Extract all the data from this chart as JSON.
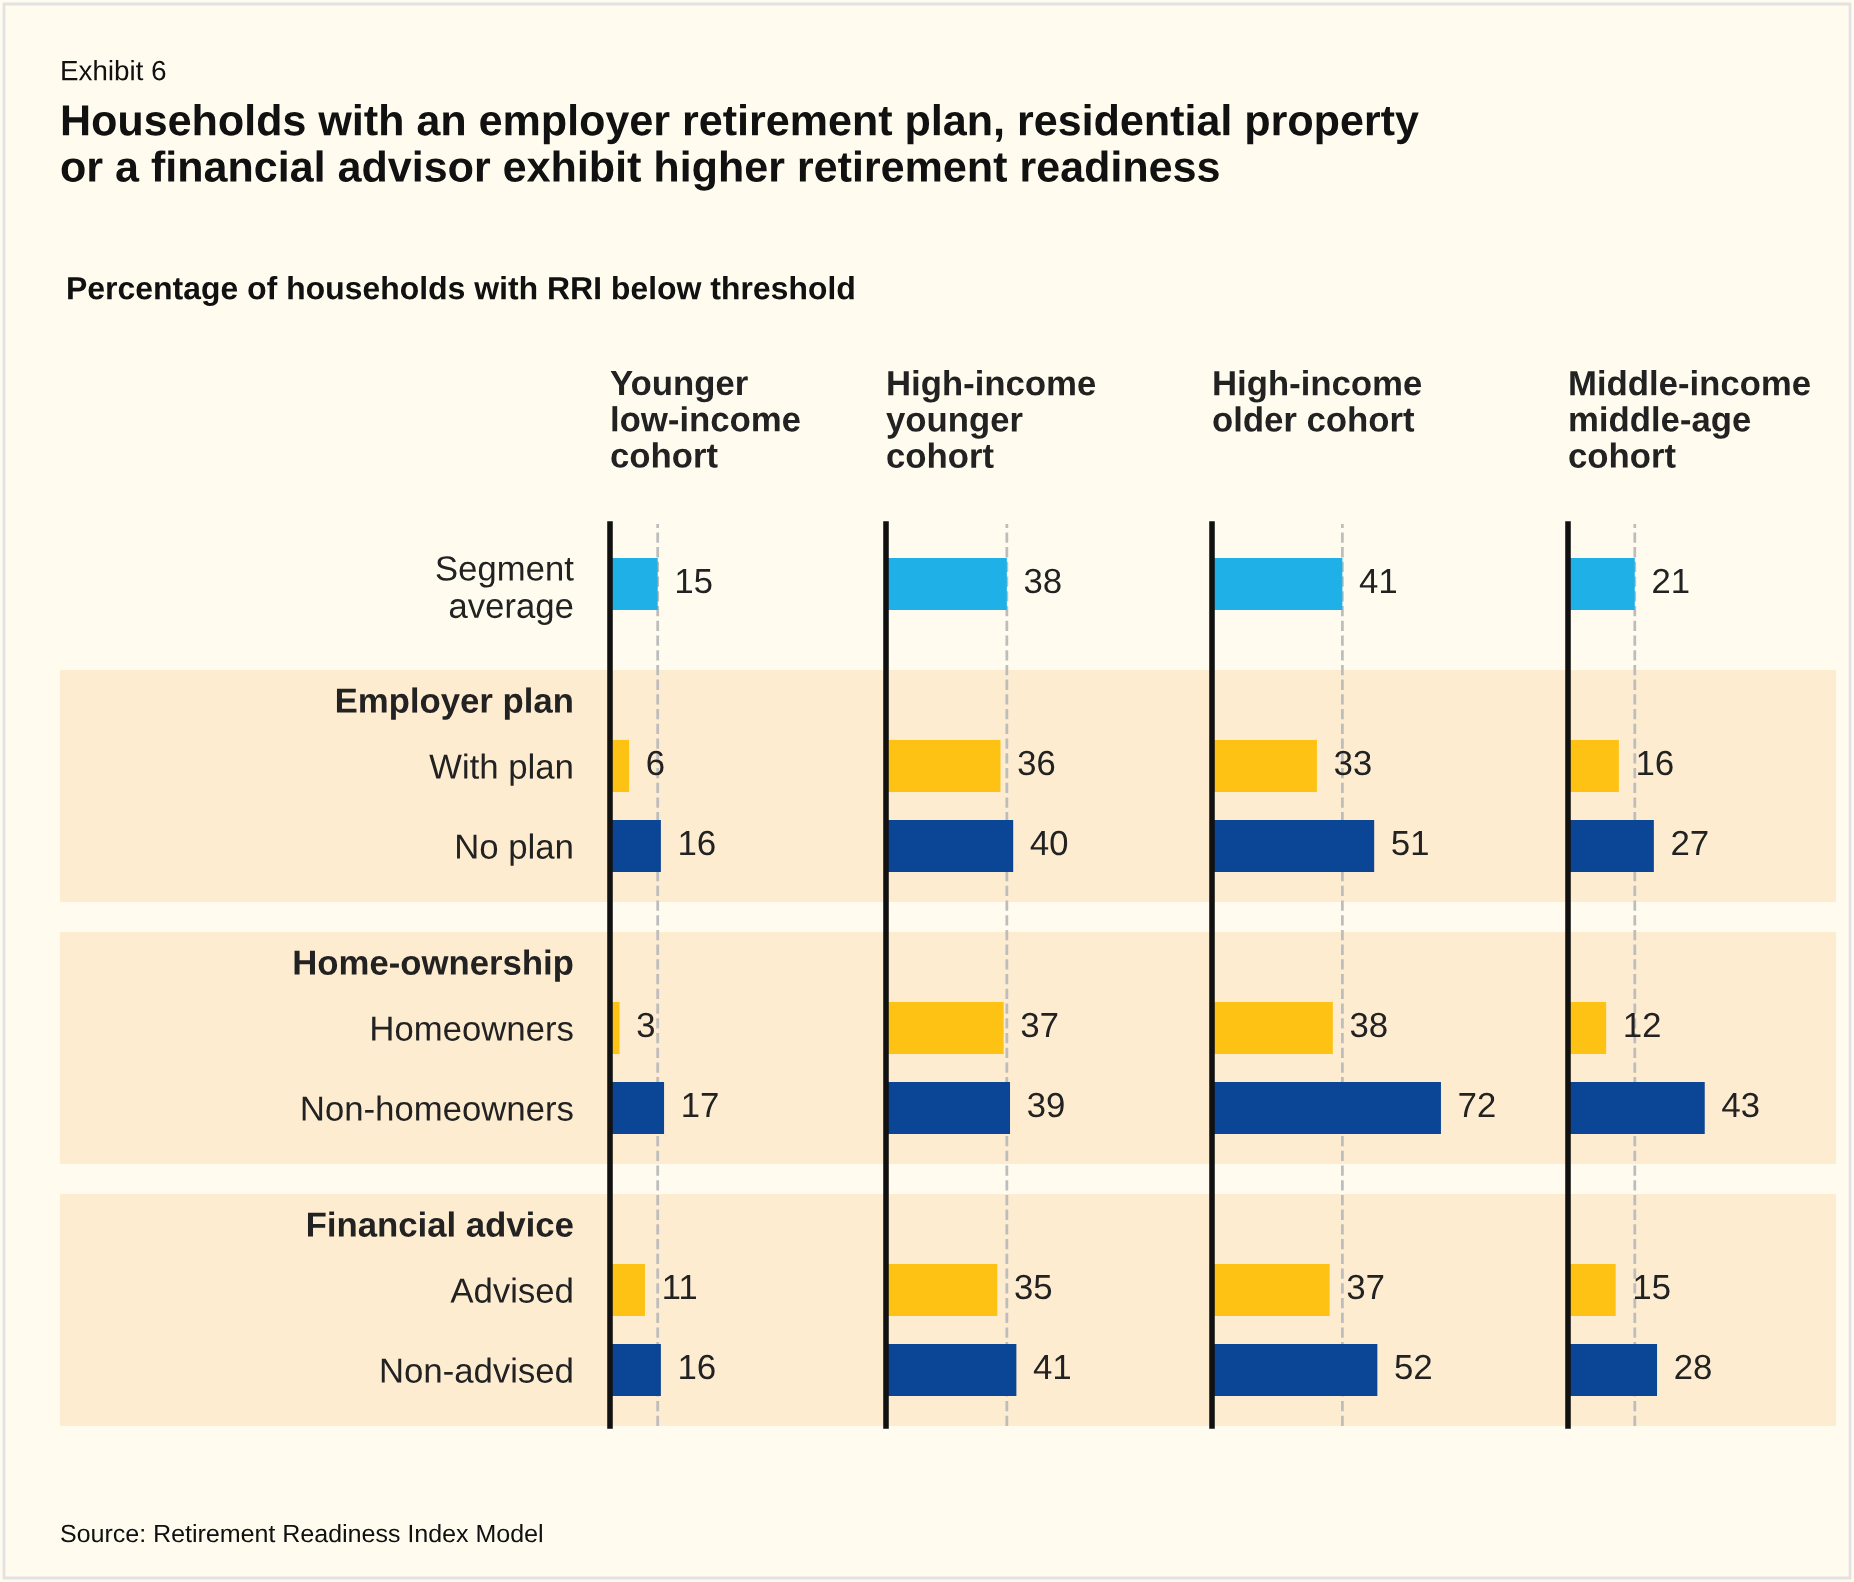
{
  "chart_data": [
    {
      "type": "bar",
      "orientation": "horizontal",
      "title": "Younger\nlow-income\ncohort",
      "categories": [
        "Segment\naverage",
        "Employer plan",
        "With plan",
        "No plan",
        "Home-ownership",
        "Homeowners",
        "Non-homeowners",
        "Financial advice",
        "Advised",
        "Non-advised"
      ],
      "values": [
        15,
        null,
        6,
        16,
        null,
        3,
        17,
        null,
        11,
        16
      ],
      "colors": [
        "#20b0e8",
        null,
        "#fec214",
        "#0b4596",
        null,
        "#fec214",
        "#0b4596",
        null,
        "#fec214",
        "#0b4596"
      ],
      "data_labels": true,
      "tick_labels": "y",
      "ref_lines": [
        {
          "axis": "x",
          "value": 15,
          "color": "#bdbdbd",
          "line_style": "dashed"
        }
      ],
      "bands": [
        {
          "axis": "y",
          "from": "Employer plan",
          "to": "No plan",
          "color": "#fdecd0"
        },
        {
          "axis": "y",
          "from": "Home-ownership",
          "to": "Non-homeowners",
          "color": "#fdecd0"
        },
        {
          "axis": "y",
          "from": "Financial advice",
          "to": "Non-advised",
          "color": "#fdecd0"
        }
      ],
      "annotations": [
        "Exhibit 6",
        "Households with an employer retirement plan, residential property\nor a financial advisor exhibit higher retirement readiness",
        "Percentage of households with RRI below threshold",
        "Source: Retirement Readiness Index Model"
      ]
    },
    {
      "type": "bar",
      "orientation": "horizontal",
      "title": "High-income\nyounger\ncohort",
      "values": [
        38,
        null,
        36,
        40,
        null,
        37,
        39,
        null,
        35,
        41
      ],
      "colors": [
        "#20b0e8",
        null,
        "#fec214",
        "#0b4596",
        null,
        "#fec214",
        "#0b4596",
        null,
        "#fec214",
        "#0b4596"
      ],
      "data_labels": true,
      "tick_labels": false,
      "ref_lines": [
        {
          "axis": "x",
          "value": 38,
          "color": "#bdbdbd",
          "line_style": "dashed"
        }
      ]
    },
    {
      "type": "bar",
      "orientation": "horizontal",
      "title": "High-income\nolder cohort",
      "values": [
        41,
        null,
        33,
        51,
        null,
        38,
        72,
        null,
        37,
        52
      ],
      "colors": [
        "#20b0e8",
        null,
        "#fec214",
        "#0b4596",
        null,
        "#fec214",
        "#0b4596",
        null,
        "#fec214",
        "#0b4596"
      ],
      "data_labels": true,
      "tick_labels": false,
      "ref_lines": [
        {
          "axis": "x",
          "value": 41,
          "color": "#bdbdbd",
          "line_style": "dashed"
        }
      ]
    },
    {
      "type": "bar",
      "orientation": "horizontal",
      "title": "Middle-income\nmiddle-age\ncohort",
      "values": [
        21,
        null,
        16,
        27,
        null,
        12,
        43,
        null,
        15,
        28
      ],
      "colors": [
        "#20b0e8",
        null,
        "#fec214",
        "#0b4596",
        null,
        "#fec214",
        "#0b4596",
        null,
        "#fec214",
        "#0b4596"
      ],
      "data_labels": true,
      "tick_labels": false,
      "ref_lines": [
        {
          "axis": "x",
          "value": 21,
          "color": "#bdbdbd",
          "line_style": "dashed"
        }
      ]
    }
  ]
}
